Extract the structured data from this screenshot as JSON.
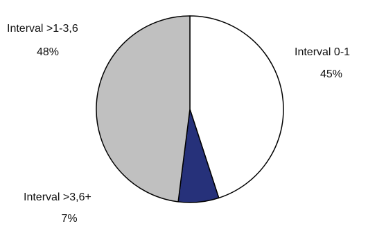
{
  "chart_data": {
    "type": "pie",
    "slices": [
      {
        "label": "Interval 0-1",
        "value": 45,
        "value_label": "45%",
        "color": "#ffffff"
      },
      {
        "label": "Interval >3,6+",
        "value": 7,
        "value_label": "7%",
        "color": "#26317a"
      },
      {
        "label": "Interval >1-3,6",
        "value": 48,
        "value_label": "48%",
        "color": "#c0c0c0"
      }
    ],
    "start_angle_deg": 0,
    "direction": "clockwise",
    "stroke_color": "#000000"
  }
}
